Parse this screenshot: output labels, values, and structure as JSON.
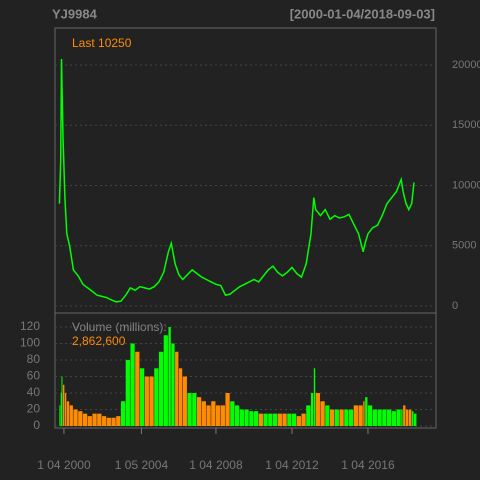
{
  "chart_data": [
    {
      "type": "line",
      "title": "YJ9984",
      "subtitle": "[2000-01-04/2018-09-03]",
      "annotation": "Last 10250",
      "x": [
        2000.01,
        2000.08,
        2000.12,
        2000.2,
        2000.3,
        2000.4,
        2000.55,
        2000.75,
        2001.0,
        2001.25,
        2001.5,
        2001.75,
        2002.0,
        2002.25,
        2002.5,
        2002.75,
        2003.0,
        2003.25,
        2003.5,
        2003.75,
        2004.0,
        2004.25,
        2004.5,
        2004.75,
        2005.0,
        2005.25,
        2005.5,
        2005.75,
        2005.9,
        2006.1,
        2006.3,
        2006.5,
        2006.75,
        2007.0,
        2007.25,
        2007.5,
        2007.75,
        2008.0,
        2008.25,
        2008.5,
        2008.75,
        2009.0,
        2009.25,
        2009.5,
        2009.75,
        2010.0,
        2010.25,
        2010.5,
        2010.75,
        2011.0,
        2011.25,
        2011.5,
        2011.75,
        2012.0,
        2012.25,
        2012.5,
        2012.75,
        2013.0,
        2013.25,
        2013.4,
        2013.5,
        2013.75,
        2014.0,
        2014.25,
        2014.5,
        2014.75,
        2015.0,
        2015.25,
        2015.5,
        2015.75,
        2016.0,
        2016.1,
        2016.25,
        2016.5,
        2016.75,
        2017.0,
        2017.25,
        2017.5,
        2017.75,
        2018.0,
        2018.1,
        2018.25,
        2018.4,
        2018.55,
        2018.67
      ],
      "series": [
        {
          "color": "#00ff00",
          "values": [
            8500,
            12000,
            20500,
            14000,
            9000,
            6000,
            5000,
            3000,
            2500,
            1800,
            1500,
            1200,
            900,
            800,
            700,
            500,
            350,
            400,
            900,
            1500,
            1300,
            1600,
            1500,
            1400,
            1600,
            2000,
            2800,
            4500,
            5200,
            3500,
            2600,
            2200,
            2600,
            3000,
            2700,
            2400,
            2200,
            2000,
            1800,
            1700,
            900,
            1000,
            1300,
            1600,
            1800,
            2000,
            2200,
            2000,
            2500,
            3000,
            3300,
            2800,
            2500,
            2800,
            3200,
            2700,
            2400,
            3500,
            6000,
            9000,
            8000,
            7500,
            8000,
            7200,
            7500,
            7300,
            7400,
            7600,
            6800,
            6000,
            4500,
            5200,
            6000,
            6500,
            6700,
            7500,
            8500,
            9000,
            9500,
            10500,
            9500,
            8500,
            8000,
            8500,
            10250
          ]
        }
      ],
      "xlim": [
        1999.78,
        2019.83
      ],
      "ylim": [
        -580,
        23070
      ],
      "yticks": [
        0,
        5000,
        10000,
        15000,
        20000
      ],
      "grid": true,
      "annotation_color": "#ff8c00"
    },
    {
      "type": "bar",
      "annotation": "Volume (millions):",
      "annotation_value": "2,862,600",
      "up_color": "#00ff00",
      "down_color": "#ff8c00",
      "values": [
        25,
        40,
        60,
        50,
        40,
        30,
        25,
        20,
        18,
        15,
        12,
        15,
        15,
        12,
        10,
        10,
        12,
        30,
        80,
        100,
        90,
        70,
        60,
        60,
        70,
        90,
        110,
        120,
        100,
        90,
        70,
        60,
        40,
        40,
        35,
        30,
        25,
        30,
        25,
        25,
        40,
        30,
        25,
        20,
        20,
        18,
        18,
        15,
        15,
        15,
        15,
        15,
        15,
        15,
        15,
        12,
        15,
        25,
        40,
        70,
        40,
        30,
        25,
        20,
        20,
        20,
        20,
        20,
        25,
        25,
        30,
        35,
        25,
        20,
        20,
        20,
        20,
        18,
        20,
        20,
        25,
        20,
        20,
        18,
        15
      ],
      "xlim": [
        1999.78,
        2019.83
      ],
      "ylim": [
        -2.4,
        137
      ],
      "yticks": [
        0,
        20,
        40,
        60,
        80,
        100,
        120
      ],
      "grid": true,
      "xticks": [
        {
          "value": 2000.25,
          "label": "1 04 2000"
        },
        {
          "value": 2004.33,
          "label": "1 05 2004"
        },
        {
          "value": 2008.25,
          "label": "1 04 2008"
        },
        {
          "value": 2012.25,
          "label": "1 04 2012"
        },
        {
          "value": 2016.25,
          "label": "1 04 2016"
        }
      ]
    }
  ]
}
